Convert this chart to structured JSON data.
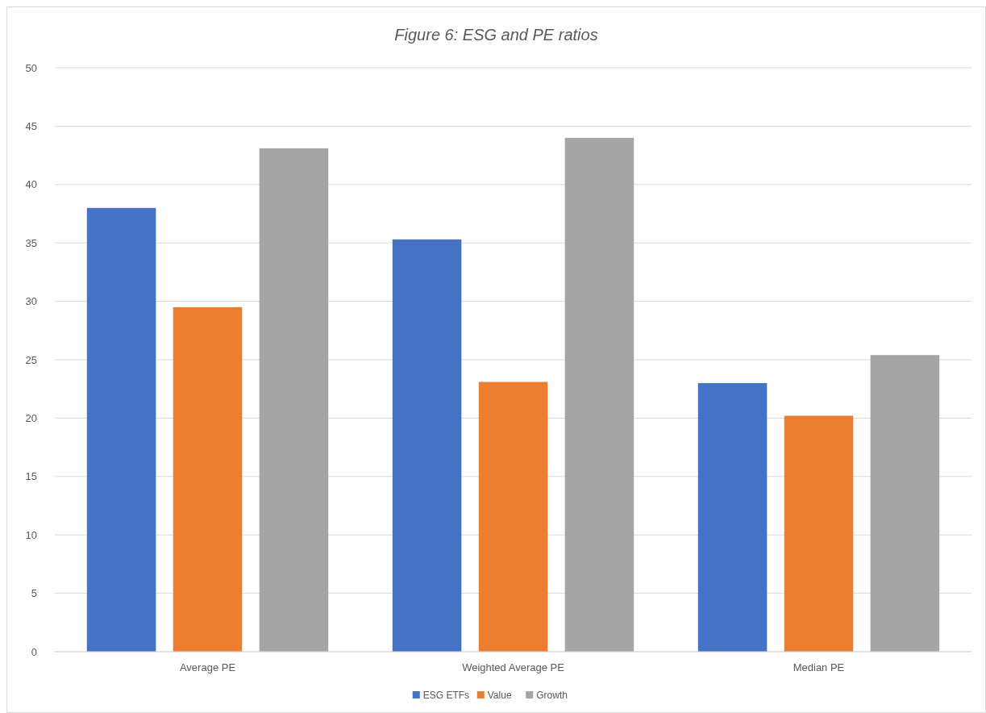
{
  "chart_data": {
    "type": "bar",
    "title": "Figure 6: ESG and PE ratios",
    "categories": [
      "Average PE",
      "Weighted Average PE",
      "Median PE"
    ],
    "series": [
      {
        "name": "ESG ETFs",
        "color": "#4472c4",
        "values": [
          38.0,
          35.3,
          23.0
        ]
      },
      {
        "name": "Value",
        "color": "#ed7d31",
        "values": [
          29.5,
          23.1,
          20.2
        ]
      },
      {
        "name": "Growth",
        "color": "#a5a5a5",
        "values": [
          43.1,
          44.0,
          25.4
        ]
      }
    ],
    "ylim": [
      0,
      50
    ],
    "yticks": [
      0,
      5,
      10,
      15,
      20,
      25,
      30,
      35,
      40,
      45,
      50
    ],
    "grid": "y",
    "legend": "bottom"
  }
}
